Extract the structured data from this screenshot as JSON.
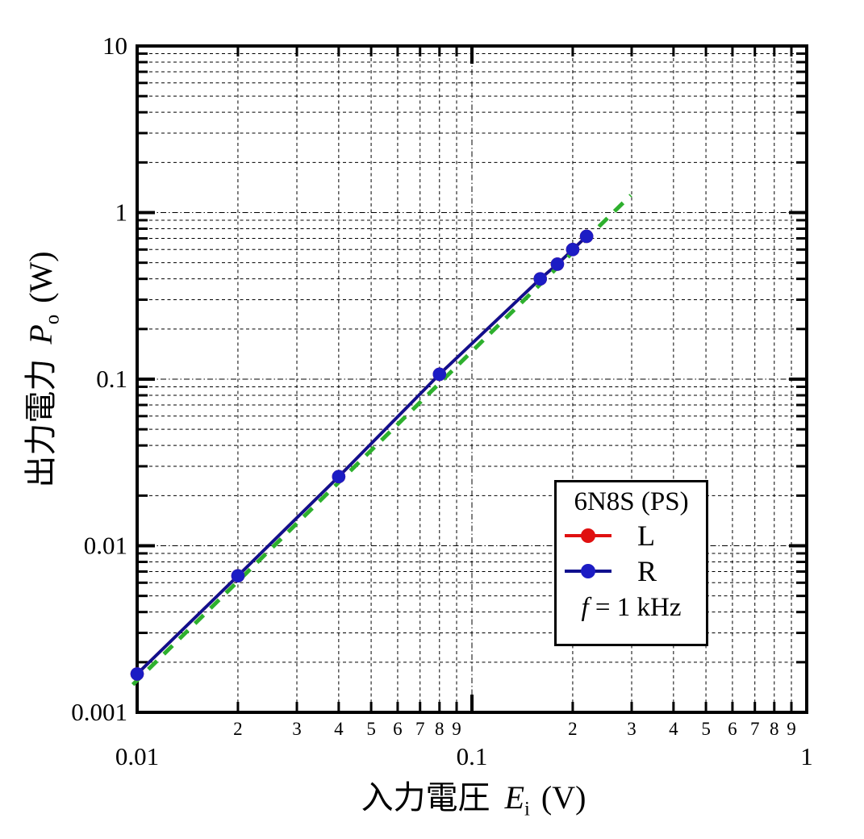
{
  "axes": {
    "x": {
      "title_cjk": "入力電圧",
      "title_var": "E",
      "title_sub": "i",
      "title_unit": "(V)",
      "major_labels": [
        "0.01",
        "0.1",
        "1"
      ],
      "minor_labels": [
        "2",
        "3",
        "4",
        "5",
        "6",
        "7",
        "8",
        "9"
      ]
    },
    "y": {
      "title_cjk": "出力電力",
      "title_var": "P",
      "title_sub": "o",
      "title_unit": "(W)",
      "major_labels": [
        "10",
        "1",
        "0.1",
        "0.01",
        "0.001"
      ]
    }
  },
  "legend": {
    "title": "6N8S (PS)",
    "entries": [
      {
        "label": "L",
        "line_color": "#e01010",
        "marker_color": "#e01010"
      },
      {
        "label": "R",
        "line_color": "#10108e",
        "marker_color": "#1c1cc4"
      }
    ],
    "note_var": "f",
    "note_text": " = 1 kHz"
  },
  "chart_data": {
    "type": "line",
    "xscale": "log",
    "yscale": "log",
    "xlim": [
      0.01,
      1
    ],
    "ylim": [
      0.001,
      10
    ],
    "xlabel": "入力電圧 Ei (V)",
    "ylabel": "出力電力 Po (W)",
    "grid": "on-dashed-log-minor",
    "legend_position": "inside-right-lower",
    "x": [
      0.01,
      0.02,
      0.04,
      0.08,
      0.16,
      0.18,
      0.2,
      0.22
    ],
    "series": [
      {
        "name": "L",
        "color": "#e01010",
        "marker_color": "#e01010",
        "values": [
          0.0017,
          0.0066,
          0.026,
          0.107,
          0.4,
          0.49,
          0.6,
          0.72
        ]
      },
      {
        "name": "R",
        "color": "#10108e",
        "marker_color": "#1c1cc4",
        "values": [
          0.0017,
          0.0066,
          0.026,
          0.107,
          0.4,
          0.49,
          0.6,
          0.72
        ]
      }
    ],
    "reference_line": {
      "style": "dashed",
      "color": "#2eb02e",
      "x": [
        0.0096,
        0.295
      ],
      "y": [
        0.0015,
        1.3
      ]
    }
  }
}
